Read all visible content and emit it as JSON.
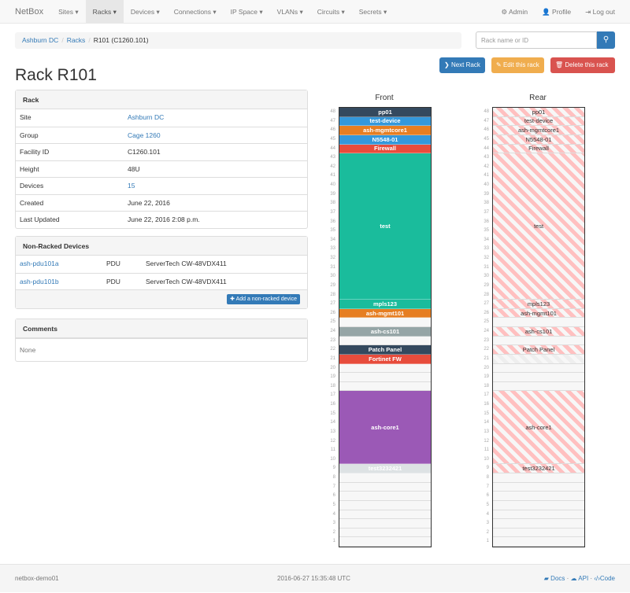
{
  "nav": {
    "brand": "NetBox",
    "items": [
      "Sites",
      "Racks",
      "Devices",
      "Connections",
      "IP Space",
      "VLANs",
      "Circuits",
      "Secrets"
    ],
    "active": 1,
    "right": [
      {
        "icon": "gear-icon",
        "glyph": "⚙",
        "label": "Admin"
      },
      {
        "icon": "user-icon",
        "glyph": "👤",
        "label": "Profile"
      },
      {
        "icon": "logout-icon",
        "glyph": "⇥",
        "label": "Log out"
      }
    ]
  },
  "breadcrumb": [
    "Ashburn DC",
    "Racks",
    "R101 (C1260.101)"
  ],
  "search": {
    "placeholder": "Rack name or ID"
  },
  "buttons": {
    "next": "Next Rack",
    "edit": "Edit this rack",
    "delete": "Delete this rack"
  },
  "colors": {
    "primary": "#337ab7",
    "warning": "#f0ad4e",
    "danger": "#d9534f"
  },
  "title": "Rack R101",
  "rack_panel": {
    "heading": "Rack",
    "rows": [
      {
        "k": "Site",
        "v": "Ashburn DC",
        "link": true
      },
      {
        "k": "Group",
        "v": "Cage 1260",
        "link": true
      },
      {
        "k": "Facility ID",
        "v": "C1260.101"
      },
      {
        "k": "Height",
        "v": "48U"
      },
      {
        "k": "Devices",
        "v": "15",
        "link": true
      },
      {
        "k": "Created",
        "v": "June 22, 2016"
      },
      {
        "k": "Last Updated",
        "v": "June 22, 2016 2:08 p.m."
      }
    ]
  },
  "nonracked": {
    "heading": "Non-Racked Devices",
    "rows": [
      {
        "name": "ash-pdu101a",
        "role": "PDU",
        "type": "ServerTech CW-48VDX411"
      },
      {
        "name": "ash-pdu101b",
        "role": "PDU",
        "type": "ServerTech CW-48VDX411"
      }
    ],
    "add": "Add a non-racked device"
  },
  "comments": {
    "heading": "Comments",
    "body": "None"
  },
  "rack": {
    "height": 48,
    "front_label": "Front",
    "rear_label": "Rear",
    "devices": [
      {
        "name": "pp01",
        "u": 48,
        "h": 1,
        "color": "#34495e",
        "rear": true
      },
      {
        "name": "test-device",
        "u": 47,
        "h": 1,
        "color": "#3498db",
        "rear": true
      },
      {
        "name": "ash-mgmtcore1",
        "u": 46,
        "h": 1,
        "color": "#e67e22",
        "rear": true
      },
      {
        "name": "N5548-01",
        "u": 45,
        "h": 1,
        "color": "#3498db",
        "rear": true
      },
      {
        "name": "Firewall",
        "u": 44,
        "h": 1,
        "color": "#e74c3c",
        "rear": true
      },
      {
        "name": "test",
        "u": 28,
        "h": 16,
        "color": "#1abc9c",
        "rear": true
      },
      {
        "name": "mpls123",
        "u": 27,
        "h": 1,
        "color": "#1abc9c",
        "rear": true
      },
      {
        "name": "ash-mgmt101",
        "u": 26,
        "h": 1,
        "color": "#e67e22",
        "rear": true
      },
      {
        "name": "ash-cs101",
        "u": 24,
        "h": 1,
        "color": "#95a5a6",
        "rear": true
      },
      {
        "name": "Patch Panel",
        "u": 22,
        "h": 1,
        "color": "#34495e",
        "rear": true
      },
      {
        "name": "Fortinet FW",
        "u": 21,
        "h": 1,
        "color": "#e74c3c",
        "rear": false
      },
      {
        "name": "ash-core1",
        "u": 10,
        "h": 8,
        "color": "#9b59b6",
        "rear": true
      },
      {
        "name": "test3232421",
        "u": 9,
        "h": 1,
        "color": "#dde2e4",
        "rear": true
      }
    ]
  },
  "footer": {
    "host": "netbox-demo01",
    "time": "2016-06-27 15:35:48 UTC",
    "docs": "Docs",
    "api": "API",
    "code": "Code"
  }
}
